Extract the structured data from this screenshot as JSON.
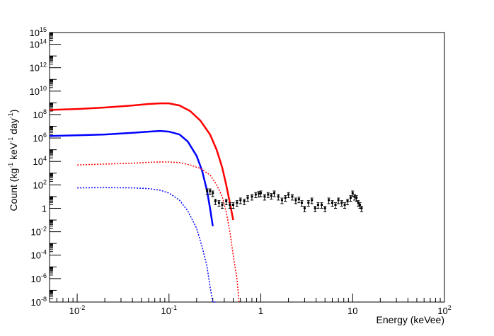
{
  "chart_data": {
    "type": "line",
    "xlabel": "Energy (keVee)",
    "ylabel_parts": {
      "main": "Count (kg",
      "sup1": "-1",
      "mid": " keV",
      "sup2": "-1",
      "mid2": " day",
      "sup3": "-1",
      "end": ")"
    },
    "x_scale": "log",
    "y_scale": "log",
    "xlim": [
      0.005,
      100
    ],
    "ylim": [
      1e-08,
      1000000000000000.0
    ],
    "x_ticks": [
      {
        "value": 0.01,
        "base": "10",
        "exp": "-2"
      },
      {
        "value": 0.1,
        "base": "10",
        "exp": "-1"
      },
      {
        "value": 1,
        "base": "1",
        "exp": ""
      },
      {
        "value": 10,
        "base": "10",
        "exp": ""
      },
      {
        "value": 100,
        "base": "10",
        "exp": "2"
      }
    ],
    "y_ticks": [
      {
        "value": 1e-08,
        "base": "10",
        "exp": "-8"
      },
      {
        "value": 1e-06,
        "base": "10",
        "exp": "-6"
      },
      {
        "value": 0.0001,
        "base": "10",
        "exp": "-4"
      },
      {
        "value": 0.01,
        "base": "10",
        "exp": "-2"
      },
      {
        "value": 1,
        "base": "1",
        "exp": ""
      },
      {
        "value": 100.0,
        "base": "10",
        "exp": "2"
      },
      {
        "value": 10000.0,
        "base": "10",
        "exp": "4"
      },
      {
        "value": 1000000.0,
        "base": "10",
        "exp": "6"
      },
      {
        "value": 100000000.0,
        "base": "10",
        "exp": "8"
      },
      {
        "value": 10000000000.0,
        "base": "10",
        "exp": "10"
      },
      {
        "value": 1000000000000.0,
        "base": "10",
        "exp": "12"
      },
      {
        "value": 100000000000000.0,
        "base": "10",
        "exp": "14"
      },
      {
        "value": 1000000000000000.0,
        "base": "10",
        "exp": "15"
      }
    ],
    "series": [
      {
        "color": "#ff0000",
        "style": "solid",
        "x": [
          0.005,
          0.01,
          0.02,
          0.04,
          0.06,
          0.08,
          0.1,
          0.13,
          0.17,
          0.22,
          0.28,
          0.33,
          0.38,
          0.42,
          0.46,
          0.5
        ],
        "y": [
          250000000.0,
          300000000.0,
          400000000.0,
          600000000.0,
          800000000.0,
          900000000.0,
          900000000.0,
          600000000.0,
          200000000.0,
          30000000.0,
          2000000.0,
          100000.0,
          3000.0,
          100,
          3,
          0.1
        ]
      },
      {
        "color": "#0000ff",
        "style": "solid",
        "x": [
          0.005,
          0.01,
          0.02,
          0.04,
          0.06,
          0.08,
          0.1,
          0.13,
          0.16,
          0.2,
          0.23,
          0.26,
          0.28,
          0.3
        ],
        "y": [
          1500000.0,
          1700000.0,
          2000000.0,
          2800000.0,
          3500000.0,
          4000000.0,
          3500000.0,
          2000000.0,
          500000.0,
          30000.0,
          1500.0,
          30,
          1,
          0.03
        ]
      },
      {
        "color": "#ff0000",
        "style": "dotted",
        "x": [
          0.01,
          0.02,
          0.04,
          0.06,
          0.08,
          0.1,
          0.13,
          0.17,
          0.22,
          0.28,
          0.33,
          0.38,
          0.42,
          0.46,
          0.5,
          0.55,
          0.58
        ],
        "y": [
          5000.0,
          6000.0,
          7000.0,
          8500.0,
          9000.0,
          9000.0,
          8000.0,
          5000.0,
          2500.0,
          700,
          100,
          10,
          0.5,
          0.01,
          0.0001,
          1e-06,
          1e-08
        ]
      },
      {
        "color": "#0000ff",
        "style": "dotted",
        "x": [
          0.01,
          0.02,
          0.04,
          0.06,
          0.08,
          0.1,
          0.13,
          0.16,
          0.2,
          0.23,
          0.26,
          0.28,
          0.3,
          0.32
        ],
        "y": [
          55,
          58,
          55,
          48,
          35,
          20,
          5,
          0.6,
          0.02,
          0.0005,
          1e-05,
          2e-07,
          1e-08,
          1e-09
        ]
      }
    ],
    "data_points": {
      "color": "#000000",
      "x": [
        0.26,
        0.28,
        0.3,
        0.32,
        0.35,
        0.38,
        0.42,
        0.46,
        0.5,
        0.55,
        0.6,
        0.66,
        0.72,
        0.8,
        0.88,
        0.95,
        1.0,
        1.1,
        1.2,
        1.3,
        1.4,
        1.55,
        1.7,
        1.85,
        2.0,
        2.2,
        2.4,
        2.6,
        2.8,
        3.0,
        3.3,
        3.6,
        3.9,
        4.2,
        4.6,
        5.0,
        5.5,
        6.0,
        6.5,
        7.0,
        7.6,
        8.2,
        8.8,
        9.5,
        10.0,
        10.5,
        11.0,
        11.5,
        12.0,
        12.5
      ],
      "y": [
        30,
        30,
        20,
        4,
        3,
        2,
        4,
        2,
        2,
        3,
        5,
        4,
        8,
        10,
        15,
        18,
        20,
        10,
        15,
        12,
        20,
        10,
        5,
        8,
        15,
        10,
        5,
        6,
        3,
        1,
        3,
        5,
        1,
        2,
        2,
        1,
        5,
        3,
        2,
        5,
        3,
        2,
        4,
        8,
        20,
        10,
        8,
        3,
        2,
        1
      ],
      "err_lo": [
        15,
        15,
        10,
        2,
        1.5,
        1,
        2,
        1,
        1,
        1.5,
        2.5,
        2,
        4,
        5,
        7,
        9,
        10,
        5,
        7,
        6,
        10,
        5,
        2.5,
        4,
        7,
        5,
        2.5,
        3,
        1.5,
        0.5,
        1.5,
        2.5,
        0.5,
        1,
        1,
        0.5,
        2.5,
        1.5,
        1,
        2.5,
        1.5,
        1,
        2,
        4,
        10,
        5,
        4,
        1.5,
        1,
        0.5
      ],
      "err_hi": [
        15,
        15,
        10,
        2,
        1.5,
        1,
        2,
        1,
        1,
        1.5,
        2.5,
        2,
        4,
        5,
        7,
        9,
        10,
        5,
        7,
        6,
        10,
        5,
        2.5,
        4,
        7,
        5,
        2.5,
        3,
        1.5,
        0.5,
        1.5,
        2.5,
        0.5,
        1,
        1,
        0.5,
        2.5,
        1.5,
        1,
        2.5,
        1.5,
        1,
        2,
        4,
        10,
        5,
        4,
        1.5,
        1,
        0.5
      ]
    }
  }
}
